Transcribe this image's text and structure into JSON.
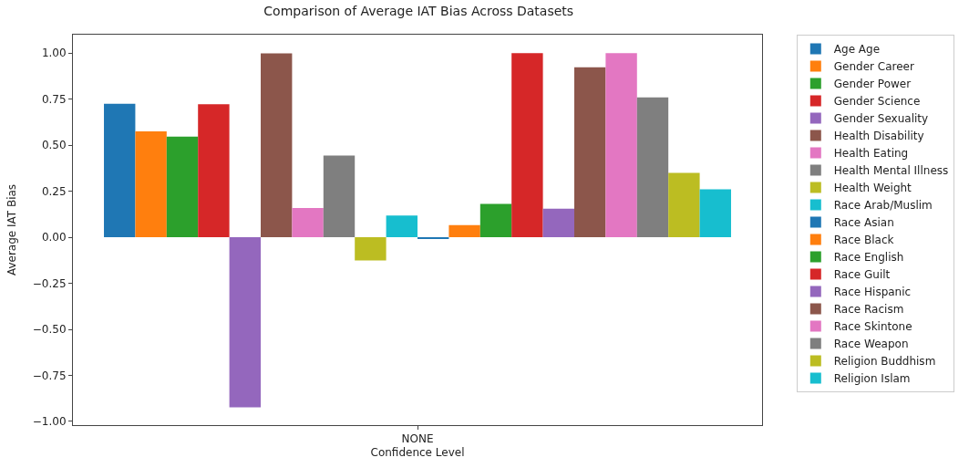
{
  "chart_data": {
    "type": "bar",
    "title": "Comparison of Average IAT Bias Across Datasets",
    "xlabel": "Confidence Level",
    "ylabel": "Average IAT Bias",
    "categories": [
      "NONE"
    ],
    "series": [
      {
        "name": "Age Age",
        "color": "#1f77b4",
        "values": [
          0.725
        ]
      },
      {
        "name": "Gender Career",
        "color": "#ff7f0e",
        "values": [
          0.575
        ]
      },
      {
        "name": "Gender Power",
        "color": "#2ca02c",
        "values": [
          0.546
        ]
      },
      {
        "name": "Gender Science",
        "color": "#d62728",
        "values": [
          0.722
        ]
      },
      {
        "name": "Gender Sexuality",
        "color": "#9467bd",
        "values": [
          -0.923
        ]
      },
      {
        "name": "Health Disability",
        "color": "#8c564b",
        "values": [
          0.998
        ]
      },
      {
        "name": "Health Eating",
        "color": "#e377c2",
        "values": [
          0.159
        ]
      },
      {
        "name": "Health Mental Illness",
        "color": "#7f7f7f",
        "values": [
          0.444
        ]
      },
      {
        "name": "Health Weight",
        "color": "#bcbd22",
        "values": [
          -0.126
        ]
      },
      {
        "name": "Race Arab/Muslim",
        "color": "#17becf",
        "values": [
          0.118
        ]
      },
      {
        "name": "Race Asian",
        "color": "#1f77b4",
        "values": [
          -0.009
        ]
      },
      {
        "name": "Race Black",
        "color": "#ff7f0e",
        "values": [
          0.066
        ]
      },
      {
        "name": "Race English",
        "color": "#2ca02c",
        "values": [
          0.181
        ]
      },
      {
        "name": "Race Guilt",
        "color": "#d62728",
        "values": [
          1.0
        ]
      },
      {
        "name": "Race Hispanic",
        "color": "#9467bd",
        "values": [
          0.155
        ]
      },
      {
        "name": "Race Racism",
        "color": "#8c564b",
        "values": [
          0.923
        ]
      },
      {
        "name": "Race Skintone",
        "color": "#e377c2",
        "values": [
          1.0
        ]
      },
      {
        "name": "Race Weapon",
        "color": "#7f7f7f",
        "values": [
          0.76
        ]
      },
      {
        "name": "Religion Buddhism",
        "color": "#bcbd22",
        "values": [
          0.349
        ]
      },
      {
        "name": "Religion Islam",
        "color": "#17becf",
        "values": [
          0.261
        ]
      }
    ],
    "ylim": [
      -1.02,
      1.1
    ],
    "yticks": [
      {
        "value": -1.0,
        "label": "−1.00"
      },
      {
        "value": -0.75,
        "label": "−0.75"
      },
      {
        "value": -0.5,
        "label": "−0.50"
      },
      {
        "value": -0.25,
        "label": "−0.25"
      },
      {
        "value": 0.0,
        "label": "0.00"
      },
      {
        "value": 0.25,
        "label": "0.25"
      },
      {
        "value": 0.5,
        "label": "0.50"
      },
      {
        "value": 0.75,
        "label": "0.75"
      },
      {
        "value": 1.0,
        "label": "1.00"
      }
    ],
    "legend": "top right"
  }
}
